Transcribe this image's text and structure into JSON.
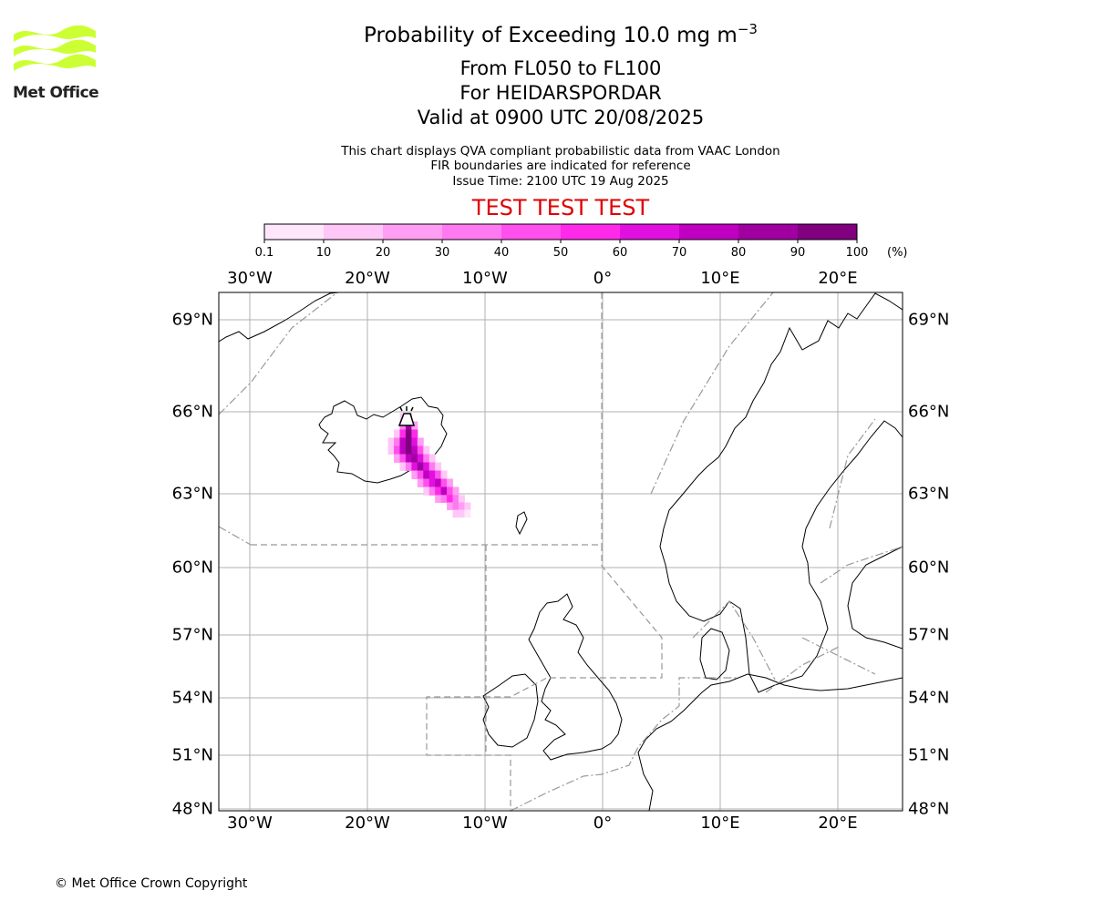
{
  "header": {
    "title_main": "Probability of Exceeding 10.0 mg m",
    "title_exp": "−3",
    "line_levels": "From FL050 to FL100",
    "line_volcano": "For HEIDARSPORDAR",
    "line_valid": "Valid at 0900 UTC 20/08/2025",
    "desc_1": "This chart displays QVA compliant probabilistic data from VAAC London",
    "desc_2": "FIR boundaries are indicated for reference",
    "desc_3": "Issue Time: 2100 UTC 19 Aug 2025",
    "test_banner": "TEST TEST TEST"
  },
  "logo": {
    "text": "Met Office",
    "color": "#ccff33"
  },
  "colorbar": {
    "labels": [
      "0.1",
      "10",
      "20",
      "30",
      "40",
      "50",
      "60",
      "70",
      "80",
      "90",
      "100"
    ],
    "unit": "(%)",
    "colors": [
      "#ffe6fb",
      "#ffc7f7",
      "#ff9ef3",
      "#ff7af0",
      "#ff4fec",
      "#ff2ae9",
      "#e010e0",
      "#c000c0",
      "#a000a0",
      "#800080",
      "#5a005a"
    ]
  },
  "axes": {
    "lon_labels": [
      "30°W",
      "20°W",
      "10°W",
      "0°",
      "10°E",
      "20°E"
    ],
    "lat_labels": [
      "69°N",
      "66°N",
      "63°N",
      "60°N",
      "57°N",
      "54°N",
      "51°N",
      "48°N"
    ]
  },
  "map_data": {
    "volcano_name": "HEIDARSPORDAR",
    "plume_cells": [
      {
        "lon": -17.0,
        "lat": 65.8,
        "p": 15
      },
      {
        "lon": -16.5,
        "lat": 65.8,
        "p": 20
      },
      {
        "lon": -17.0,
        "lat": 65.5,
        "p": 35
      },
      {
        "lon": -16.5,
        "lat": 65.5,
        "p": 85
      },
      {
        "lon": -16.0,
        "lat": 65.5,
        "p": 25
      },
      {
        "lon": -17.5,
        "lat": 65.2,
        "p": 15
      },
      {
        "lon": -17.0,
        "lat": 65.2,
        "p": 55
      },
      {
        "lon": -16.5,
        "lat": 65.2,
        "p": 95
      },
      {
        "lon": -16.0,
        "lat": 65.2,
        "p": 50
      },
      {
        "lon": -18.0,
        "lat": 64.9,
        "p": 10
      },
      {
        "lon": -17.5,
        "lat": 64.9,
        "p": 35
      },
      {
        "lon": -17.0,
        "lat": 64.9,
        "p": 70
      },
      {
        "lon": -16.5,
        "lat": 64.9,
        "p": 95
      },
      {
        "lon": -16.0,
        "lat": 64.9,
        "p": 65
      },
      {
        "lon": -15.5,
        "lat": 64.9,
        "p": 20
      },
      {
        "lon": -18.0,
        "lat": 64.6,
        "p": 15
      },
      {
        "lon": -17.5,
        "lat": 64.6,
        "p": 45
      },
      {
        "lon": -17.0,
        "lat": 64.6,
        "p": 75
      },
      {
        "lon": -16.5,
        "lat": 64.6,
        "p": 90
      },
      {
        "lon": -16.0,
        "lat": 64.6,
        "p": 75
      },
      {
        "lon": -15.5,
        "lat": 64.6,
        "p": 40
      },
      {
        "lon": -15.0,
        "lat": 64.6,
        "p": 15
      },
      {
        "lon": -17.5,
        "lat": 64.3,
        "p": 20
      },
      {
        "lon": -17.0,
        "lat": 64.3,
        "p": 45
      },
      {
        "lon": -16.5,
        "lat": 64.3,
        "p": 70
      },
      {
        "lon": -16.0,
        "lat": 64.3,
        "p": 85
      },
      {
        "lon": -15.5,
        "lat": 64.3,
        "p": 60
      },
      {
        "lon": -15.0,
        "lat": 64.3,
        "p": 30
      },
      {
        "lon": -14.5,
        "lat": 64.3,
        "p": 15
      },
      {
        "lon": -17.0,
        "lat": 64.0,
        "p": 15
      },
      {
        "lon": -16.5,
        "lat": 64.0,
        "p": 35
      },
      {
        "lon": -16.0,
        "lat": 64.0,
        "p": 60
      },
      {
        "lon": -15.5,
        "lat": 64.0,
        "p": 80
      },
      {
        "lon": -15.0,
        "lat": 64.0,
        "p": 65
      },
      {
        "lon": -14.5,
        "lat": 64.0,
        "p": 35
      },
      {
        "lon": -14.0,
        "lat": 64.0,
        "p": 15
      },
      {
        "lon": -16.0,
        "lat": 63.7,
        "p": 25
      },
      {
        "lon": -15.5,
        "lat": 63.7,
        "p": 45
      },
      {
        "lon": -15.0,
        "lat": 63.7,
        "p": 75
      },
      {
        "lon": -14.5,
        "lat": 63.7,
        "p": 65
      },
      {
        "lon": -14.0,
        "lat": 63.7,
        "p": 40
      },
      {
        "lon": -13.5,
        "lat": 63.7,
        "p": 15
      },
      {
        "lon": -15.5,
        "lat": 63.4,
        "p": 20
      },
      {
        "lon": -15.0,
        "lat": 63.4,
        "p": 40
      },
      {
        "lon": -14.5,
        "lat": 63.4,
        "p": 65
      },
      {
        "lon": -14.0,
        "lat": 63.4,
        "p": 70
      },
      {
        "lon": -13.5,
        "lat": 63.4,
        "p": 45
      },
      {
        "lon": -13.0,
        "lat": 63.4,
        "p": 20
      },
      {
        "lon": -15.0,
        "lat": 63.1,
        "p": 15
      },
      {
        "lon": -14.5,
        "lat": 63.1,
        "p": 30
      },
      {
        "lon": -14.0,
        "lat": 63.1,
        "p": 55
      },
      {
        "lon": -13.5,
        "lat": 63.1,
        "p": 70
      },
      {
        "lon": -13.0,
        "lat": 63.1,
        "p": 45
      },
      {
        "lon": -12.5,
        "lat": 63.1,
        "p": 20
      },
      {
        "lon": -14.0,
        "lat": 62.8,
        "p": 20
      },
      {
        "lon": -13.5,
        "lat": 62.8,
        "p": 35
      },
      {
        "lon": -13.0,
        "lat": 62.8,
        "p": 55
      },
      {
        "lon": -12.5,
        "lat": 62.8,
        "p": 35
      },
      {
        "lon": -12.0,
        "lat": 62.8,
        "p": 15
      },
      {
        "lon": -13.0,
        "lat": 62.5,
        "p": 20
      },
      {
        "lon": -12.5,
        "lat": 62.5,
        "p": 30
      },
      {
        "lon": -12.0,
        "lat": 62.5,
        "p": 25
      },
      {
        "lon": -11.5,
        "lat": 62.5,
        "p": 10
      },
      {
        "lon": -12.5,
        "lat": 62.2,
        "p": 10
      },
      {
        "lon": -12.0,
        "lat": 62.2,
        "p": 15
      },
      {
        "lon": -11.5,
        "lat": 62.2,
        "p": 8
      }
    ]
  },
  "footer": {
    "copyright": "© Met Office Crown Copyright"
  }
}
